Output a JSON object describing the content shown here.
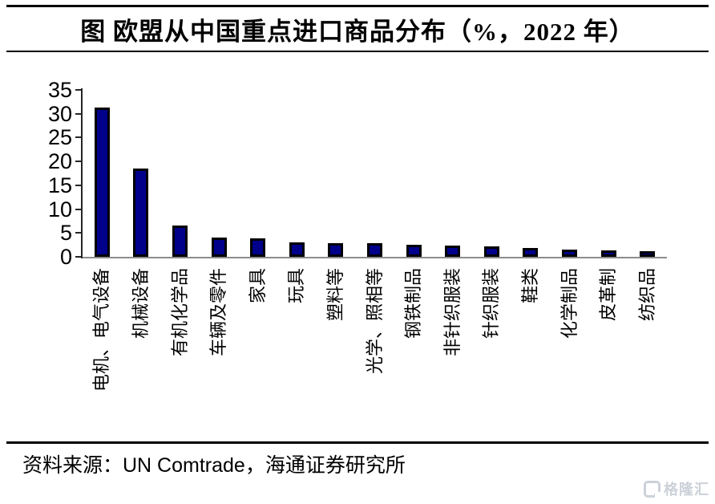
{
  "page": {
    "title": "图 欧盟从中国重点进口商品分布（%，2022 年）",
    "source_label": "资料来源：UN Comtrade，海通证券研究所",
    "watermark": "格隆汇"
  },
  "colors": {
    "bar_fill": "#00008B",
    "bar_border": "#000000",
    "axis": "#8c8c8c",
    "rule": "#000000",
    "watermark": "#ccd1d9"
  },
  "chart_data": {
    "type": "bar",
    "title": "图 欧盟从中国重点进口商品分布（%，2022 年）",
    "unit": "%",
    "year": "2022",
    "categories": [
      "电机、电气设备",
      "机械设备",
      "有机化学品",
      "车辆及零件",
      "家具",
      "玩具",
      "塑料等",
      "光学、照相等",
      "钢铁制品",
      "非针织服装",
      "针织服装",
      "鞋类",
      "化学制品",
      "皮革制",
      "纺织品"
    ],
    "values": [
      31.3,
      18.5,
      6.5,
      4.0,
      3.8,
      3.0,
      2.9,
      2.8,
      2.6,
      2.3,
      2.2,
      1.9,
      1.5,
      1.3,
      1.2
    ],
    "xlabel": "",
    "ylabel": "",
    "ylim": [
      0,
      35
    ],
    "yticks": [
      0,
      5,
      10,
      15,
      20,
      25,
      30,
      35
    ],
    "grid": false,
    "legend": null
  }
}
